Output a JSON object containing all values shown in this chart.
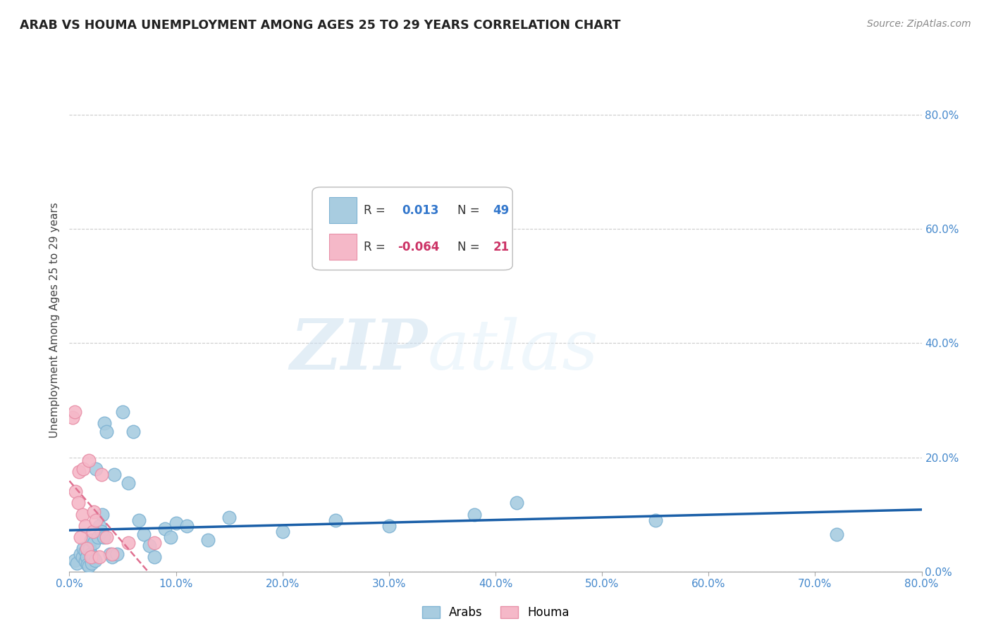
{
  "title": "ARAB VS HOUMA UNEMPLOYMENT AMONG AGES 25 TO 29 YEARS CORRELATION CHART",
  "source": "Source: ZipAtlas.com",
  "ylabel": "Unemployment Among Ages 25 to 29 years",
  "xlim": [
    0.0,
    0.8
  ],
  "ylim": [
    0.0,
    0.88
  ],
  "xticks": [
    0.0,
    0.1,
    0.2,
    0.3,
    0.4,
    0.5,
    0.6,
    0.7,
    0.8
  ],
  "xticklabels": [
    "0.0%",
    "10.0%",
    "20.0%",
    "30.0%",
    "40.0%",
    "50.0%",
    "60.0%",
    "70.0%",
    "80.0%"
  ],
  "yticks": [
    0.0,
    0.2,
    0.4,
    0.6,
    0.8
  ],
  "yticklabels": [
    "0.0%",
    "20.0%",
    "40.0%",
    "60.0%",
    "80.0%"
  ],
  "arab_color": "#a8cce0",
  "arab_edge_color": "#7fb3d3",
  "houma_color": "#f5b8c8",
  "houma_edge_color": "#e890a8",
  "arab_line_color": "#1a5fa8",
  "houma_line_color": "#e07090",
  "background_color": "#ffffff",
  "grid_color": "#cccccc",
  "arab_R": 0.013,
  "arab_N": 49,
  "houma_R": -0.064,
  "houma_N": 21,
  "watermark_zip": "ZIP",
  "watermark_atlas": "atlas",
  "arab_x": [
    0.005,
    0.007,
    0.01,
    0.012,
    0.013,
    0.015,
    0.015,
    0.016,
    0.017,
    0.018,
    0.019,
    0.02,
    0.02,
    0.021,
    0.022,
    0.023,
    0.024,
    0.025,
    0.027,
    0.028,
    0.03,
    0.031,
    0.032,
    0.033,
    0.035,
    0.038,
    0.04,
    0.042,
    0.045,
    0.05,
    0.055,
    0.06,
    0.065,
    0.07,
    0.075,
    0.08,
    0.09,
    0.095,
    0.1,
    0.11,
    0.13,
    0.15,
    0.2,
    0.25,
    0.3,
    0.38,
    0.42,
    0.55,
    0.72
  ],
  "arab_y": [
    0.02,
    0.015,
    0.03,
    0.025,
    0.04,
    0.018,
    0.035,
    0.025,
    0.012,
    0.01,
    0.04,
    0.03,
    0.055,
    0.015,
    0.025,
    0.05,
    0.02,
    0.18,
    0.06,
    0.08,
    0.07,
    0.1,
    0.06,
    0.26,
    0.245,
    0.03,
    0.025,
    0.17,
    0.03,
    0.28,
    0.155,
    0.245,
    0.09,
    0.065,
    0.045,
    0.025,
    0.075,
    0.06,
    0.085,
    0.08,
    0.055,
    0.095,
    0.07,
    0.09,
    0.08,
    0.1,
    0.12,
    0.09,
    0.065
  ],
  "houma_x": [
    0.003,
    0.005,
    0.006,
    0.008,
    0.009,
    0.01,
    0.012,
    0.013,
    0.015,
    0.016,
    0.018,
    0.02,
    0.022,
    0.023,
    0.025,
    0.028,
    0.03,
    0.035,
    0.04,
    0.055,
    0.08
  ],
  "houma_y": [
    0.27,
    0.28,
    0.14,
    0.12,
    0.175,
    0.06,
    0.1,
    0.18,
    0.08,
    0.04,
    0.195,
    0.025,
    0.07,
    0.105,
    0.09,
    0.025,
    0.17,
    0.06,
    0.03,
    0.05,
    0.05
  ]
}
